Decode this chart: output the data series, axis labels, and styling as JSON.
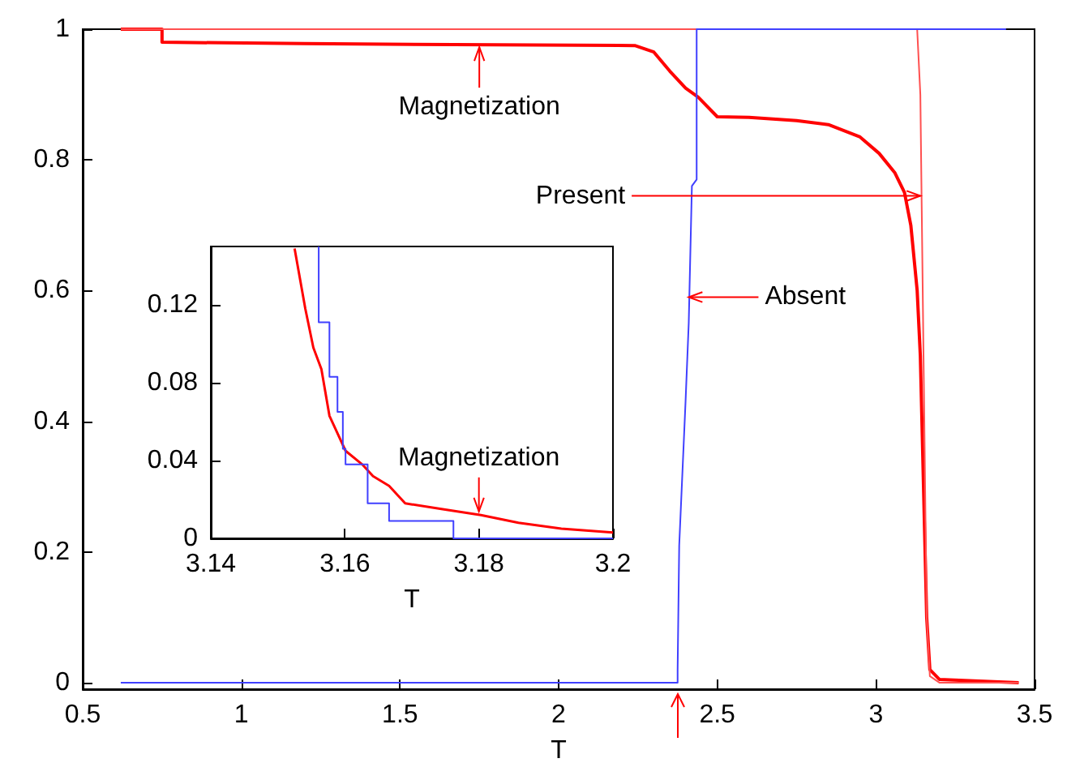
{
  "chart_data": [
    {
      "type": "line",
      "xlabel": "T",
      "xlim": [
        0.5,
        3.5
      ],
      "xticks": [
        0.5,
        1,
        1.5,
        2,
        2.5,
        3,
        3.5
      ],
      "ylim": [
        -0.01,
        1
      ],
      "yticks": [
        0,
        0.2,
        0.4,
        0.6,
        0.8,
        1
      ],
      "grid": false,
      "marker": "none",
      "line_style": "solid",
      "series": [
        {
          "color": "#ff0000",
          "x": [
            0.62,
            0.75,
            0.75,
            1.2,
            1.8,
            2.24,
            2.3,
            2.35,
            2.4,
            2.44,
            2.5,
            2.6,
            2.75,
            2.85,
            2.95,
            3.01,
            3.06,
            3.09,
            3.11,
            3.13,
            3.14,
            3.15,
            3.16,
            3.17,
            3.2,
            3.45
          ],
          "values": [
            1,
            1,
            0.98,
            0.978,
            0.976,
            0.975,
            0.965,
            0.936,
            0.91,
            0.896,
            0.866,
            0.865,
            0.86,
            0.854,
            0.835,
            0.81,
            0.78,
            0.75,
            0.7,
            0.6,
            0.5,
            0.3,
            0.1,
            0.02,
            0.005,
            0
          ]
        },
        {
          "color": "#ff5050",
          "x": [
            0.62,
            3.13,
            3.14,
            3.15,
            3.16,
            3.17,
            3.2,
            3.45
          ],
          "values": [
            1,
            1,
            0.9,
            0.5,
            0.1,
            0.01,
            0,
            0
          ]
        },
        {
          "color": "#4040ff",
          "x": [
            0.62,
            2.375,
            2.375,
            2.38,
            2.4,
            2.41,
            2.42,
            2.435,
            2.435,
            3.41
          ],
          "values": [
            0,
            0,
            0.02,
            0.21,
            0.43,
            0.55,
            0.76,
            0.77,
            1,
            1
          ]
        }
      ],
      "annotations": [
        {
          "text": "Magnetization",
          "x": 1.75,
          "y": 0.975
        },
        {
          "text": "Present",
          "x": 3.14,
          "y": 0.745
        },
        {
          "text": "Absent",
          "x": 2.41,
          "y": 0.59
        }
      ]
    },
    {
      "type": "line",
      "xlabel": "T",
      "xlim": [
        3.14,
        3.2
      ],
      "xticks": [
        3.14,
        3.16,
        3.18,
        3.2
      ],
      "ylim": [
        0,
        0.15
      ],
      "yticks": [
        0,
        0.04,
        0.08,
        0.12
      ],
      "grid": false,
      "marker": "none",
      "line_style": "solid",
      "series": [
        {
          "color": "#ff0000",
          "x": [
            3.1525,
            3.1541,
            3.1553,
            3.1565,
            3.1577,
            3.1589,
            3.1601,
            3.1626,
            3.1642,
            3.1666,
            3.169,
            3.1746,
            3.1803,
            3.1859,
            3.1923,
            3.2
          ],
          "values": [
            0.149,
            0.118,
            0.098,
            0.087,
            0.063,
            0.054,
            0.045,
            0.038,
            0.032,
            0.027,
            0.018,
            0.015,
            0.012,
            0.008,
            0.005,
            0.003
          ]
        },
        {
          "type": "step",
          "color": "#4040ff",
          "x": [
            3.1561,
            3.1561,
            3.1577,
            3.1589,
            3.1597,
            3.1601,
            3.1634,
            3.1666,
            3.1762,
            3.2
          ],
          "values": [
            0.15,
            0.111,
            0.083,
            0.065,
            0.046,
            0.038,
            0.018,
            0.009,
            0,
            0
          ]
        }
      ],
      "annotations": [
        {
          "text": "Magnetization",
          "x": 3.18,
          "y": 0.013
        }
      ]
    }
  ]
}
